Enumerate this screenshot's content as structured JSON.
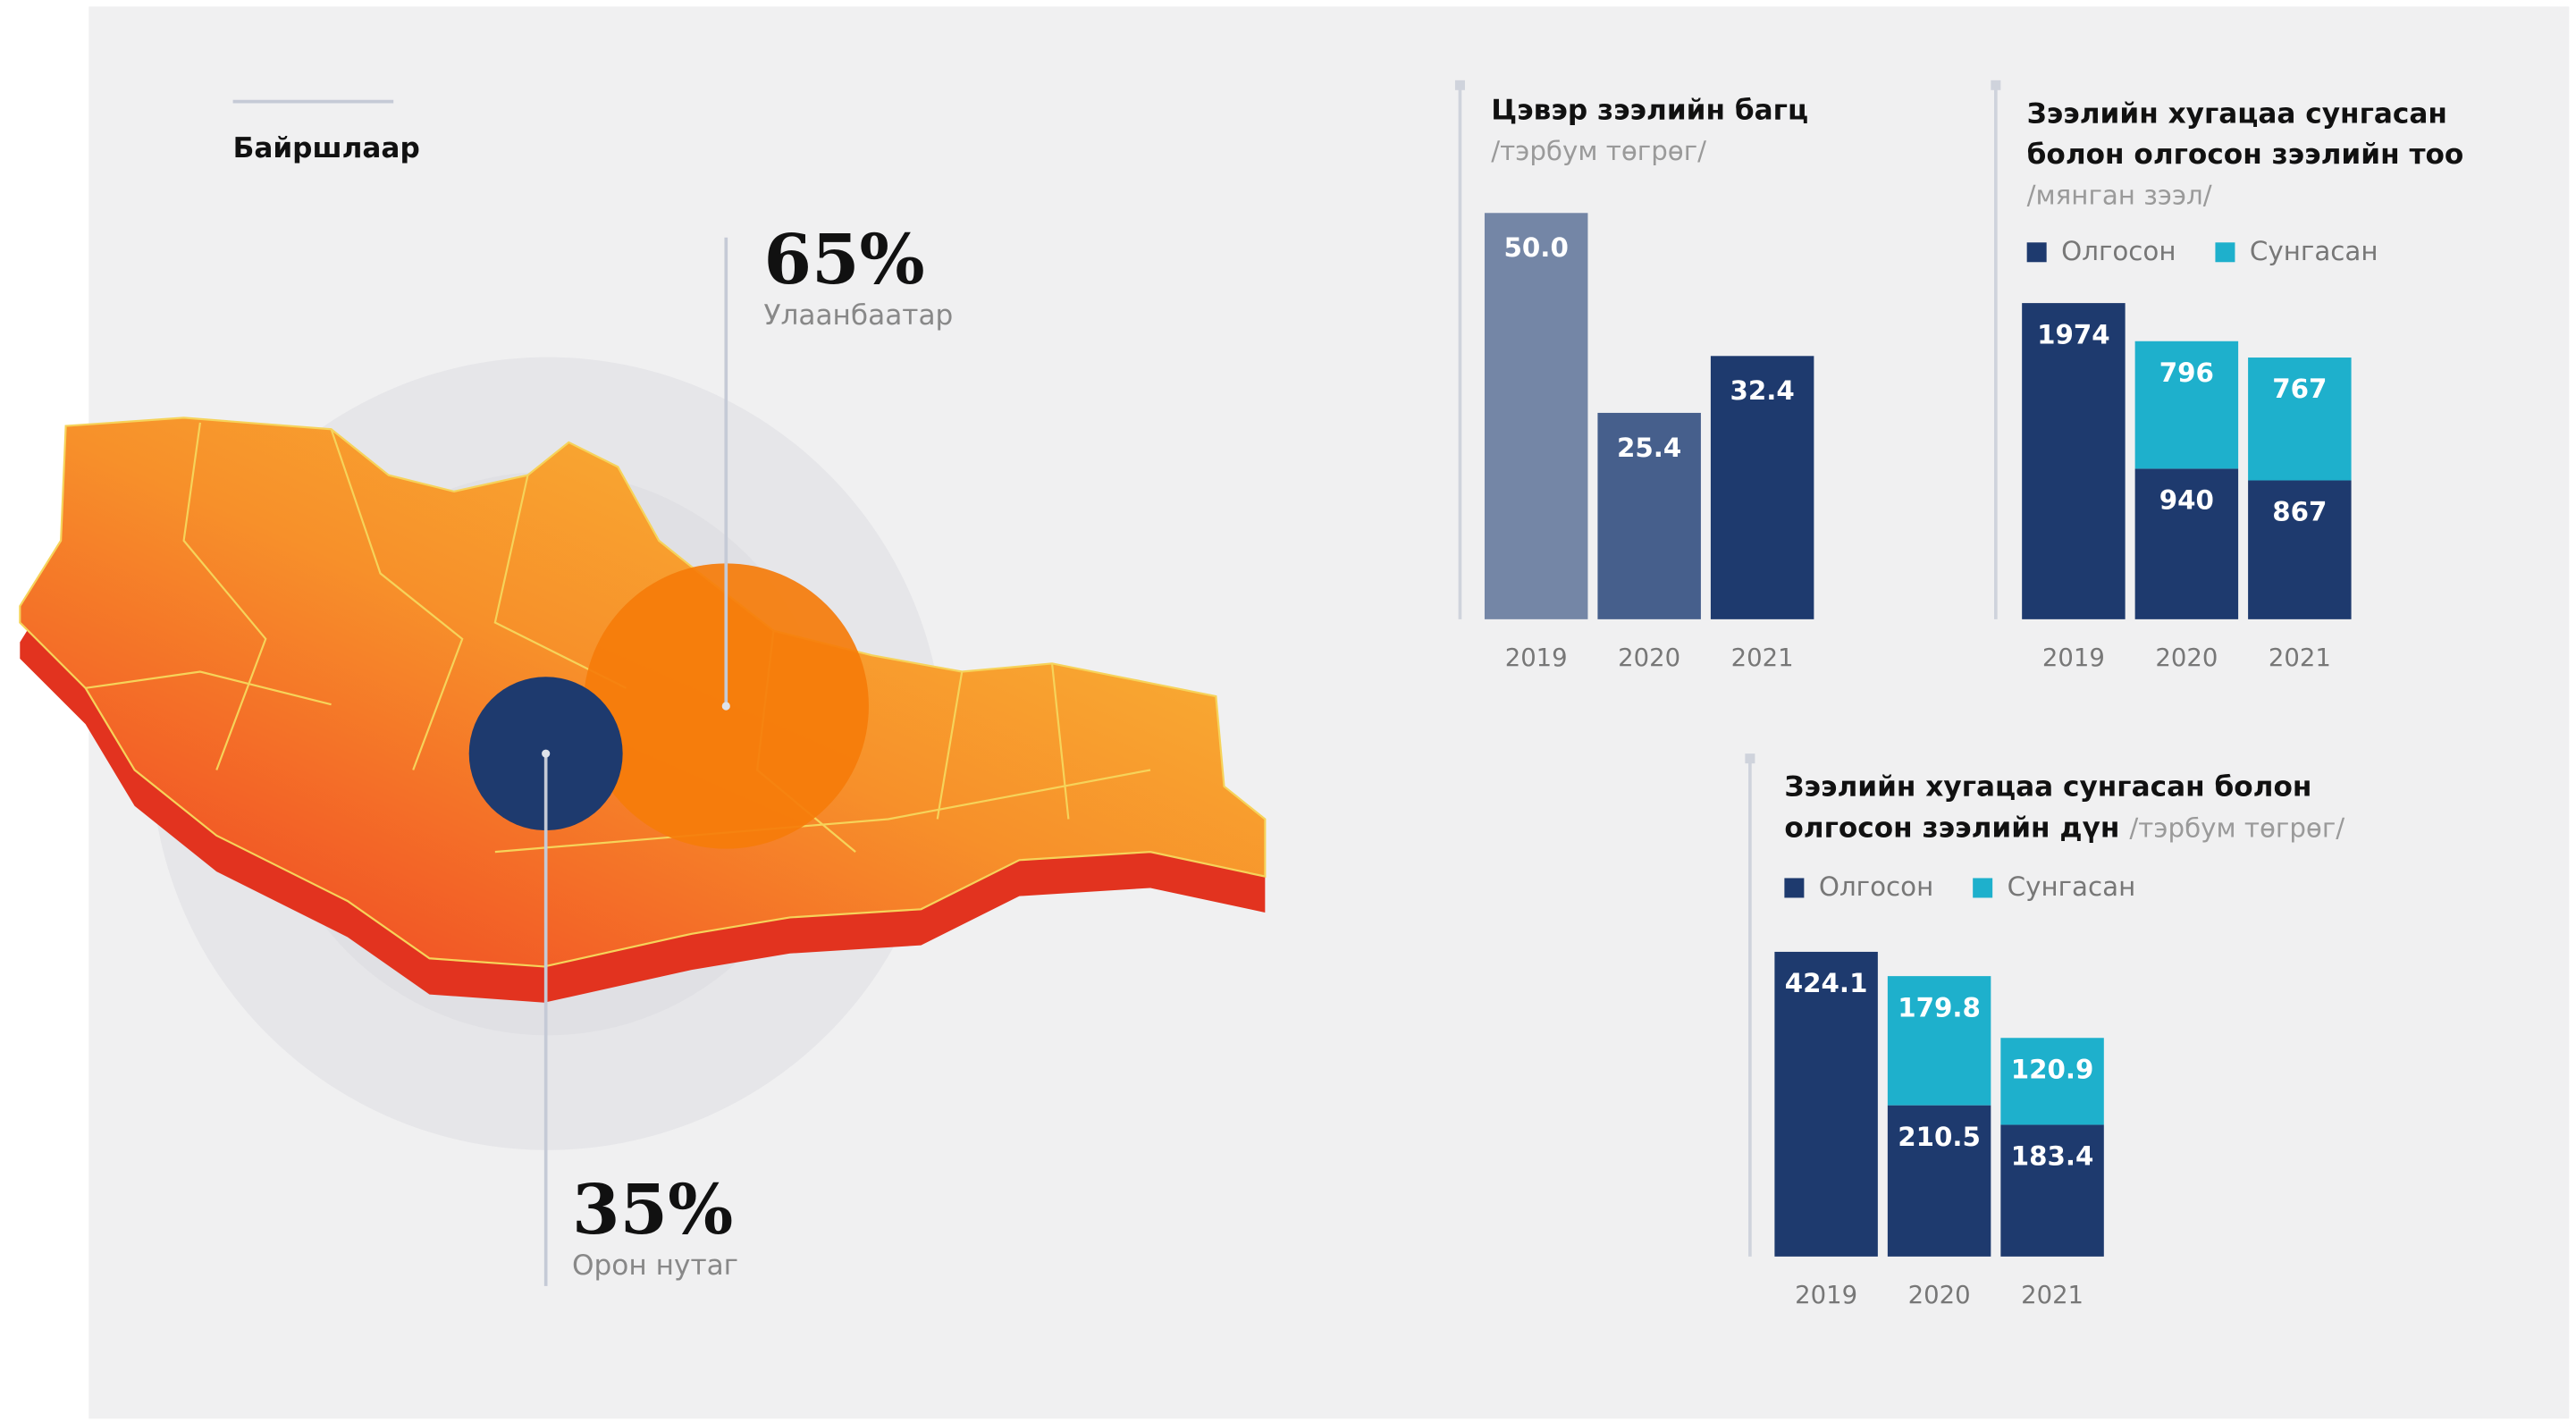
{
  "chart_data": [
    {
      "type": "proportion",
      "title": "Байршлаар",
      "categories": [
        "Улаанбаатар",
        "Орон нутаг"
      ],
      "values": [
        65,
        35
      ],
      "value_labels": [
        "65%",
        "35%"
      ],
      "colors": [
        "#f57c0a",
        "#1e3a6e"
      ]
    },
    {
      "type": "bar",
      "title": [
        "Цэвэр зээлийн багц"
      ],
      "subtitle": "/тэрбум төгрөг/",
      "categories": [
        "2019",
        "2020",
        "2021"
      ],
      "values": [
        50.0,
        25.4,
        32.4
      ],
      "value_labels": [
        "50.0",
        "25.4",
        "32.4"
      ],
      "colors": [
        "#7486a6",
        "#465f8c",
        "#1e3a6e"
      ]
    },
    {
      "type": "stacked_bar",
      "title": [
        "Зээлийн хугацаа сунгасан",
        "болон олгосон зээлийн тоо"
      ],
      "subtitle": "/мянган зээл/",
      "categories": [
        "2019",
        "2020",
        "2021"
      ],
      "series": [
        {
          "name": "Олгосон",
          "color": "#1e3a6e",
          "values": [
            1974,
            940,
            867
          ]
        },
        {
          "name": "Сунгасан",
          "color": "#1eb0cc",
          "values": [
            null,
            796,
            767
          ]
        }
      ]
    },
    {
      "type": "stacked_bar",
      "title": [
        "Зээлийн хугацаа сунгасан болон",
        "олгосон зээлийн дүн"
      ],
      "subtitle": "/тэрбум төгрөг/",
      "categories": [
        "2019",
        "2020",
        "2021"
      ],
      "series": [
        {
          "name": "Олгосон",
          "color": "#1e3a6e",
          "values": [
            424.1,
            210.5,
            183.4
          ]
        },
        {
          "name": "Сунгасан",
          "color": "#1eb0cc",
          "values": [
            null,
            179.8,
            120.9
          ]
        }
      ]
    }
  ]
}
